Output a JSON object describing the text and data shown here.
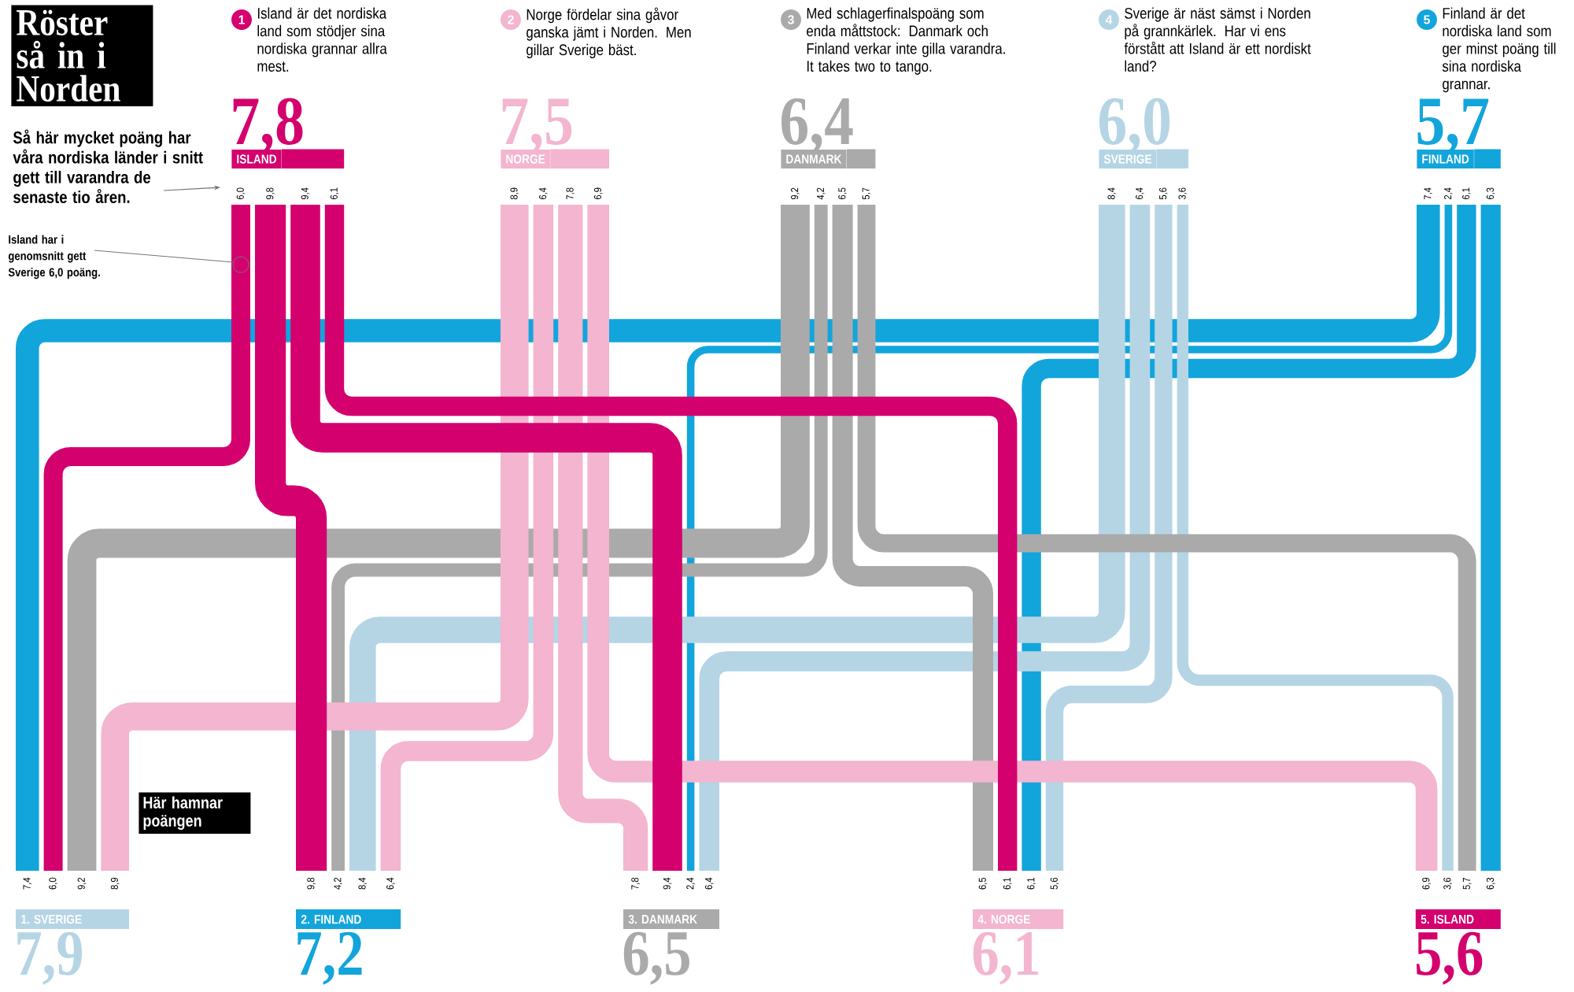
{
  "chart_data": {
    "type": "other",
    "title": "Röster så in i Norden",
    "subtitle": "Så här mycket poäng har våra nordiska länder i snitt gett till varandra de senaste tio åren.",
    "categories": [
      "1. SVERIGE",
      "2. FINLAND",
      "3. DANMARK",
      "4. NORGE",
      "5. ISLAND"
    ],
    "colors": [
      "#b5d5e5",
      "#12a5dc",
      "#aaaaaa",
      "#f3b5cf",
      "#d4006e"
    ],
    "series": [
      {
        "name": "ISLAND",
        "color": "#d4006e",
        "values": [
          6.0,
          9.8,
          9.4,
          6.1,
          null
        ],
        "value_labels": [
          "6,0",
          "9,8",
          "9,4",
          "6,1",
          null
        ]
      },
      {
        "name": "NORGE",
        "color": "#f3b5cf",
        "values": [
          8.9,
          6.4,
          7.8,
          null,
          6.9
        ],
        "value_labels": [
          "8,9",
          "6,4",
          "7,8",
          null,
          "6,9"
        ]
      },
      {
        "name": "DANMARK",
        "color": "#aaaaaa",
        "values": [
          9.2,
          4.2,
          null,
          6.5,
          5.7
        ],
        "value_labels": [
          "9,2",
          "4,2",
          null,
          "6,5",
          "5,7"
        ]
      },
      {
        "name": "SVERIGE",
        "color": "#b5d5e5",
        "values": [
          null,
          8.4,
          6.4,
          5.6,
          3.6
        ],
        "value_labels": [
          null,
          "8,4",
          "6,4",
          "5,6",
          "3,6"
        ]
      },
      {
        "name": "FINLAND",
        "color": "#12a5dc",
        "values": [
          7.4,
          null,
          2.4,
          6.1,
          6.3
        ],
        "value_labels": [
          "7,4",
          null,
          "2,4",
          "6,1",
          "6,3"
        ]
      }
    ],
    "annotations": [
      "1",
      "Island är det nordiska land som stödjer sina nordiska grannar allra mest.",
      "7,8",
      "2",
      "Norge fördelar sina gåvor ganska jämt i Norden. Men gillar Sverige bäst.",
      "7,5",
      "3",
      "Med schlagerfinalspoäng som enda måttstock: Danmark och Finland verkar inte gilla varandra. It takes two to tango.",
      "6,4",
      "4",
      "Sverige är näst sämst i Norden på grannkärlek. Har vi ens förstått att Island är ett nordiskt land?",
      "6,0",
      "5",
      "Finland är det nordiska land som ger minst poäng till sina nordiska grannar.",
      "5,7",
      "7,9",
      "7,2",
      "6,5",
      "6,1",
      "5,6",
      "Island har i genomsnitt gett Sverige 6,0 poäng.",
      "Här hamnar poängen"
    ]
  }
}
